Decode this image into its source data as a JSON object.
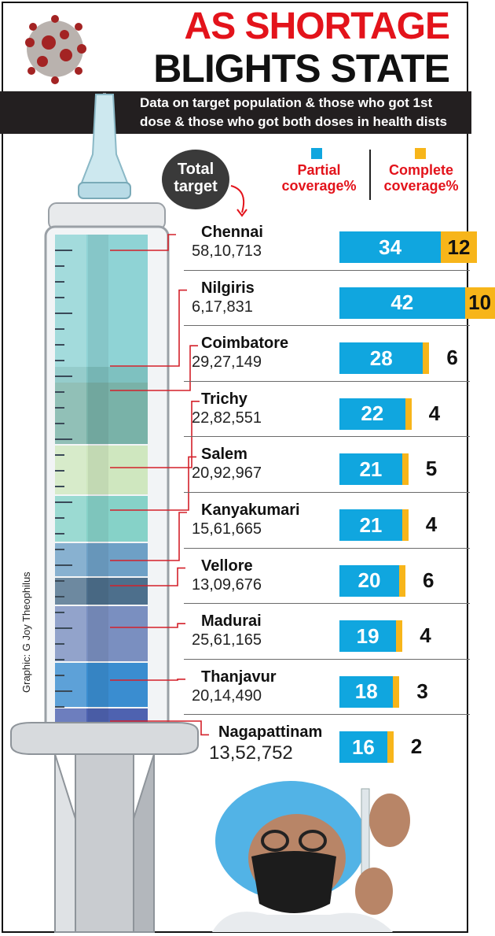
{
  "header": {
    "title_line1": "AS SHORTAGE",
    "title_line2": "BLIGHTS STATE",
    "subtitle_line1": "Data on target population & those who got 1st",
    "subtitle_line2": "dose & those who got both doses in health dists"
  },
  "badge": {
    "line1": "Total",
    "line2": "target"
  },
  "legend": {
    "partial_line1": "Partial",
    "partial_line2": "coverage%",
    "complete_line1": "Complete",
    "complete_line2": "coverage%"
  },
  "credit": "Graphic: G Joy Theophilus",
  "colors": {
    "partial": "#10a6df",
    "complete": "#f7b51a",
    "title_red": "#e3131b",
    "band": "#231f20"
  },
  "icons": [
    "virus-illustration",
    "syringe-illustration",
    "health-worker-photo"
  ],
  "chart_data": {
    "type": "bar",
    "orientation": "horizontal",
    "stacked": true,
    "categories": [
      "Chennai",
      "Nilgiris",
      "Coimbatore",
      "Trichy",
      "Salem",
      "Kanyakumari",
      "Vellore",
      "Madurai",
      "Thanjavur",
      "Nagapattinam"
    ],
    "total_target": [
      "58,10,713",
      "6,17,831",
      "29,27,149",
      "22,82,551",
      "20,92,967",
      "15,61,665",
      "13,09,676",
      "25,61,165",
      "20,14,490",
      "13,52,752"
    ],
    "series": [
      {
        "name": "Partial coverage%",
        "values": [
          34,
          42,
          28,
          22,
          21,
          21,
          20,
          19,
          18,
          16
        ]
      },
      {
        "name": "Complete coverage%",
        "values": [
          12,
          10,
          6,
          4,
          5,
          4,
          6,
          4,
          3,
          2
        ]
      }
    ],
    "title": "AS SHORTAGE BLIGHTS STATE"
  }
}
